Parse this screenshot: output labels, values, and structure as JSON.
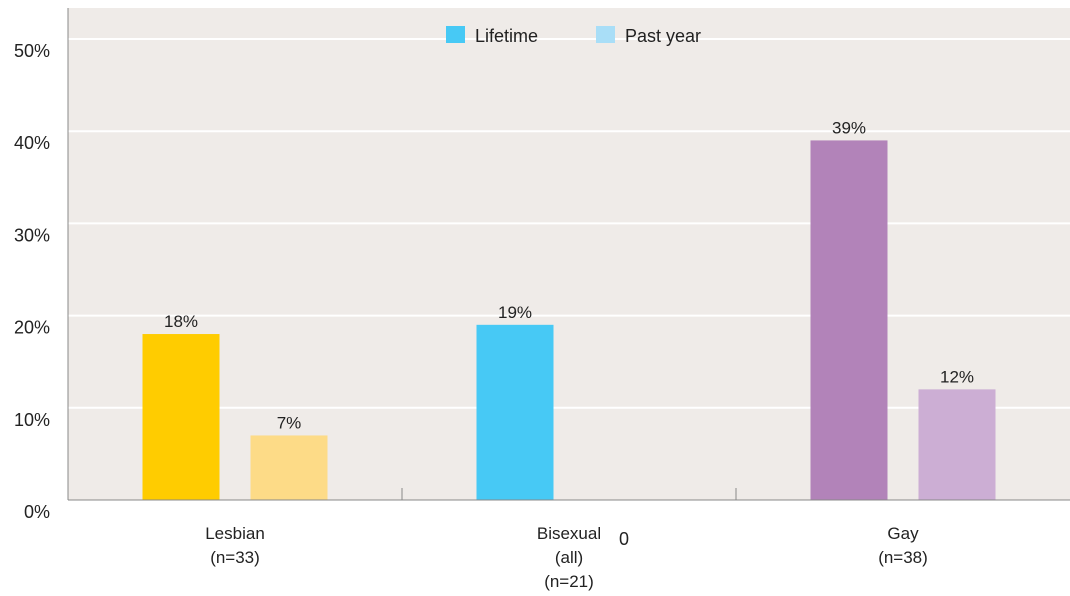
{
  "chart_data": {
    "type": "bar",
    "categories": [
      {
        "lines": [
          "Lesbian",
          "(n=33)"
        ]
      },
      {
        "lines": [
          "Bisexual",
          "(all)",
          "(n=21)"
        ]
      },
      {
        "lines": [
          "Gay",
          "(n=38)"
        ]
      }
    ],
    "series": [
      {
        "name": "Lifetime",
        "values": [
          18,
          19,
          39
        ],
        "labels": [
          "18%",
          "19%",
          "39%"
        ]
      },
      {
        "name": "Past year",
        "values": [
          7,
          0,
          12
        ],
        "labels": [
          "7%",
          "0",
          "12%"
        ]
      }
    ],
    "bar_colors": [
      [
        "#FFCC00",
        "#FDDB87"
      ],
      [
        "#47C9F5",
        "#A9DEF7"
      ],
      [
        "#B283B9",
        "#CCAED4"
      ]
    ],
    "legend": {
      "items": [
        {
          "label": "Lifetime",
          "color": "#47C9F5"
        },
        {
          "label": "Past year",
          "color": "#A9DEF7"
        }
      ],
      "position": "top-center"
    },
    "yticks": [
      {
        "value": 0,
        "label": "0%"
      },
      {
        "value": 10,
        "label": "10%"
      },
      {
        "value": 20,
        "label": "20%"
      },
      {
        "value": 30,
        "label": "30%"
      },
      {
        "value": 40,
        "label": "40%"
      },
      {
        "value": 50,
        "label": "50%"
      }
    ],
    "ylim": [
      0,
      50
    ],
    "grid": true,
    "plot_background": "#EFEBE8",
    "title": "",
    "xlabel": "",
    "ylabel": ""
  }
}
